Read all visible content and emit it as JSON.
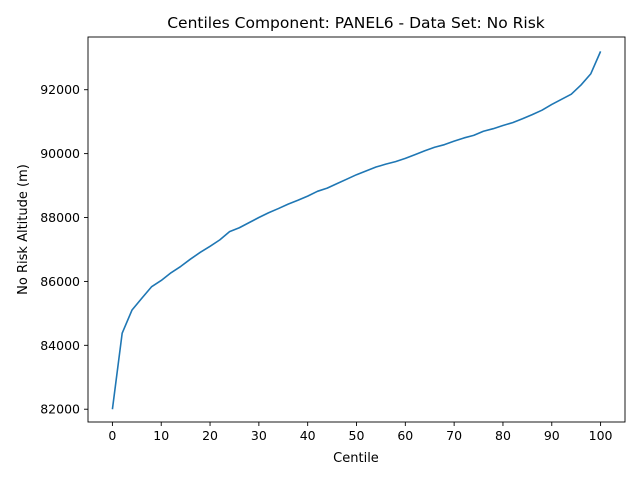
{
  "chart_data": {
    "type": "line",
    "title": "Centiles Component: PANEL6 - Data Set: No Risk",
    "xlabel": "Centile",
    "ylabel": "No Risk Altitude (m)",
    "xlim": [
      -5,
      105
    ],
    "ylim": [
      81600,
      93650
    ],
    "xticks": [
      0,
      10,
      20,
      30,
      40,
      50,
      60,
      70,
      80,
      90,
      100
    ],
    "yticks": [
      82000,
      84000,
      86000,
      88000,
      90000,
      92000
    ],
    "grid": false,
    "series": [
      {
        "color": "#1f77b4",
        "x": [
          0,
          2,
          4,
          6,
          8,
          10,
          12,
          14,
          16,
          18,
          20,
          22,
          24,
          26,
          28,
          30,
          32,
          34,
          36,
          38,
          40,
          42,
          44,
          46,
          48,
          50,
          52,
          54,
          56,
          58,
          60,
          62,
          64,
          66,
          68,
          70,
          72,
          74,
          76,
          78,
          80,
          82,
          84,
          86,
          88,
          90,
          92,
          94,
          96,
          98,
          100
        ],
        "y": [
          82000,
          84380,
          85100,
          85470,
          85830,
          86030,
          86270,
          86470,
          86700,
          86910,
          87100,
          87300,
          87560,
          87680,
          87840,
          88000,
          88150,
          88280,
          88420,
          88540,
          88670,
          88820,
          88920,
          89060,
          89200,
          89340,
          89460,
          89580,
          89670,
          89750,
          89850,
          89970,
          90090,
          90200,
          90280,
          90390,
          90490,
          90570,
          90700,
          90780,
          90880,
          90970,
          91090,
          91220,
          91360,
          91540,
          91700,
          91860,
          92150,
          92500,
          93200
        ]
      }
    ]
  }
}
